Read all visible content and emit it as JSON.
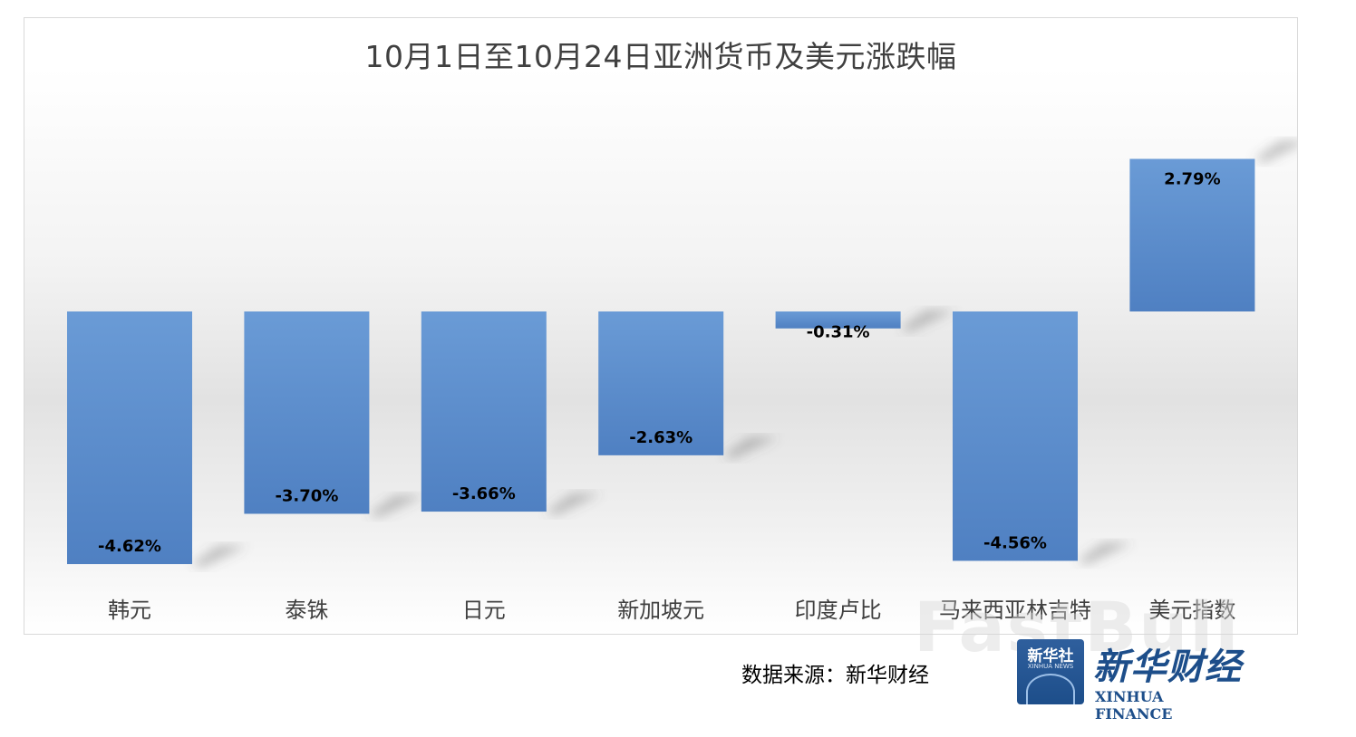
{
  "chart_data": {
    "type": "bar",
    "title": "10月1日至10月24日亚洲货币及美元涨跌幅",
    "categories": [
      "韩元",
      "泰铢",
      "日元",
      "新加坡元",
      "印度卢比",
      "马来西亚林吉特",
      "美元指数"
    ],
    "values": [
      -4.62,
      -3.7,
      -3.66,
      -2.63,
      -0.31,
      -4.56,
      2.79
    ],
    "data_labels": [
      "-4.62%",
      "-3.70%",
      "-3.66%",
      "-2.63%",
      "-0.31%",
      "-4.56%",
      "2.79%"
    ],
    "xlabel": "",
    "ylabel": "",
    "ylim": [
      -5,
      5.6
    ],
    "grid": false,
    "legend": "none",
    "bar_color": "#5b8fcc"
  },
  "source": "数据来源：新华财经",
  "logo": {
    "badge_text": "新华社",
    "badge_sub": "XINHUA NEWS",
    "name_cn": "新华财经",
    "name_en": "XINHUA FINANCE"
  },
  "watermark": "FastBull"
}
